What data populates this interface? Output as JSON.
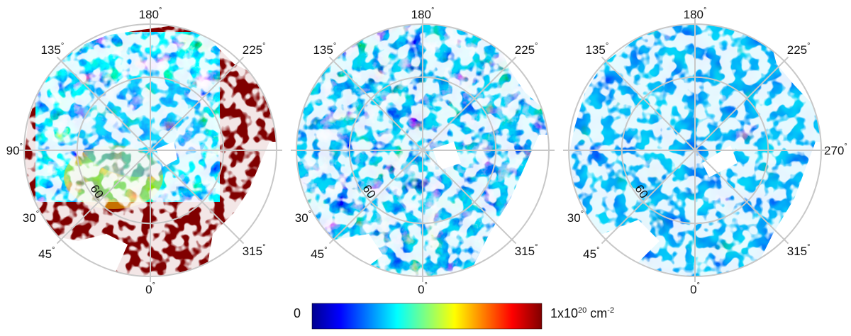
{
  "panels": [
    {
      "name": "panel-1",
      "angle_labels": [
        {
          "text": "180",
          "angle": 180
        },
        {
          "text": "135",
          "angle": 135
        },
        {
          "text": "225",
          "angle": 225
        },
        {
          "text": "90",
          "angle": 90
        },
        {
          "text": "30",
          "angle": 30
        },
        {
          "text": "45",
          "angle": 45
        },
        {
          "text": "0",
          "angle": 0
        },
        {
          "text": "315",
          "angle": 315
        }
      ],
      "inner_label": "60",
      "intensity": "high"
    },
    {
      "name": "panel-2",
      "angle_labels": [
        {
          "text": "180",
          "angle": 180
        },
        {
          "text": "135",
          "angle": 135
        },
        {
          "text": "225",
          "angle": 225
        },
        {
          "text": "30",
          "angle": 30
        },
        {
          "text": "45",
          "angle": 45
        },
        {
          "text": "0",
          "angle": 0
        },
        {
          "text": "315",
          "angle": 315
        }
      ],
      "inner_label": "60",
      "intensity": "medium"
    },
    {
      "name": "panel-3",
      "angle_labels": [
        {
          "text": "180",
          "angle": 180
        },
        {
          "text": "135",
          "angle": 135
        },
        {
          "text": "225",
          "angle": 225
        },
        {
          "text": "270",
          "angle": 270
        },
        {
          "text": "30",
          "angle": 30
        },
        {
          "text": "45",
          "angle": 45
        },
        {
          "text": "0",
          "angle": 0
        },
        {
          "text": "315",
          "angle": 315
        }
      ],
      "inner_label": "60",
      "intensity": "low"
    }
  ],
  "degree_symbol": "°",
  "colorbar": {
    "min_label": "0",
    "max_label_base": "1x10",
    "max_label_exp": "20",
    "max_label_unit": " cm",
    "max_label_unit_exp": "-2",
    "colors": [
      "#00008f",
      "#0000ff",
      "#0080ff",
      "#00ffff",
      "#80ff80",
      "#ffff00",
      "#ff8000",
      "#ff0000",
      "#800000"
    ]
  },
  "colors": {
    "grid": "#c8c8c8",
    "mask": "#ffffff"
  }
}
